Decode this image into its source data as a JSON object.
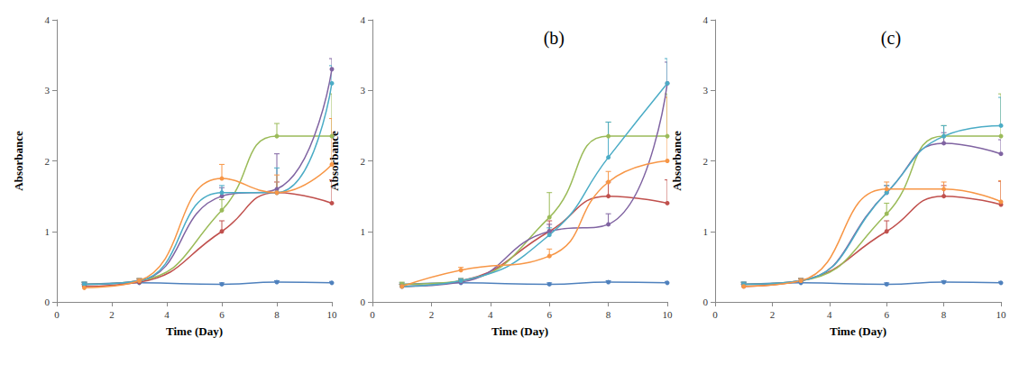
{
  "chart_data": [
    {
      "type": "line",
      "x_label": "Time (Day)",
      "y_label": "Absorbance",
      "x": [
        1,
        3,
        6,
        8,
        10
      ],
      "xlim": [
        0,
        10
      ],
      "xticks": [
        0,
        2,
        4,
        6,
        8,
        10
      ],
      "ylim": [
        0,
        4
      ],
      "yticks": [
        0,
        1,
        2,
        3,
        4
      ],
      "grid": false,
      "marker": "circle",
      "line_style": "solid",
      "series": [
        {
          "color": "#4f81bd",
          "values": [
            0.25,
            0.27,
            0.25,
            0.28,
            0.27
          ],
          "errors": [
            0.02,
            0.02,
            0.02,
            0.02,
            0.02
          ]
        },
        {
          "color": "#c0504d",
          "values": [
            0.22,
            0.28,
            1.0,
            1.55,
            1.4
          ],
          "errors": [
            0.03,
            0.03,
            0.15,
            0.15,
            0.33
          ]
        },
        {
          "color": "#9bbb59",
          "values": [
            0.25,
            0.3,
            1.3,
            2.35,
            2.35
          ],
          "errors": [
            0.03,
            0.03,
            0.15,
            0.18,
            0.6
          ]
        },
        {
          "color": "#8064a2",
          "values": [
            0.25,
            0.3,
            1.5,
            1.6,
            3.3
          ],
          "errors": [
            0.03,
            0.03,
            0.12,
            0.5,
            0.15
          ]
        },
        {
          "color": "#4bacc6",
          "values": [
            0.25,
            0.3,
            1.55,
            1.55,
            3.1
          ],
          "errors": [
            0.03,
            0.03,
            0.1,
            0.35,
            0.25
          ]
        },
        {
          "color": "#f79646",
          "values": [
            0.2,
            0.3,
            1.75,
            1.55,
            1.95
          ],
          "errors": [
            0.03,
            0.03,
            0.2,
            0.25,
            0.65
          ]
        }
      ]
    },
    {
      "type": "line",
      "x_label": "Time (Day)",
      "y_label": "Absorbance",
      "annotation": "(b)",
      "x": [
        1,
        3,
        6,
        8,
        10
      ],
      "xlim": [
        0,
        10
      ],
      "xticks": [
        0,
        2,
        4,
        6,
        8,
        10
      ],
      "ylim": [
        0,
        4
      ],
      "yticks": [
        0,
        1,
        2,
        3,
        4
      ],
      "grid": false,
      "marker": "circle",
      "line_style": "solid",
      "series": [
        {
          "color": "#4f81bd",
          "values": [
            0.25,
            0.27,
            0.25,
            0.28,
            0.27
          ],
          "errors": [
            0.02,
            0.02,
            0.02,
            0.02,
            0.02
          ]
        },
        {
          "color": "#c0504d",
          "values": [
            0.22,
            0.3,
            1.0,
            1.5,
            1.4
          ],
          "errors": [
            0.03,
            0.03,
            0.15,
            0.2,
            0.33
          ]
        },
        {
          "color": "#9bbb59",
          "values": [
            0.25,
            0.3,
            1.2,
            2.35,
            2.35
          ],
          "errors": [
            0.03,
            0.03,
            0.35,
            0.2,
            0.6
          ]
        },
        {
          "color": "#8064a2",
          "values": [
            0.22,
            0.28,
            1.0,
            1.1,
            3.1
          ],
          "errors": [
            0.03,
            0.03,
            0.1,
            0.15,
            0.3
          ]
        },
        {
          "color": "#4bacc6",
          "values": [
            0.22,
            0.3,
            0.95,
            2.05,
            3.1
          ],
          "errors": [
            0.03,
            0.03,
            0.1,
            0.5,
            0.35
          ]
        },
        {
          "color": "#f79646",
          "values": [
            0.22,
            0.45,
            0.65,
            1.7,
            2.0
          ],
          "errors": [
            0.03,
            0.04,
            0.1,
            0.15,
            0.9
          ]
        }
      ]
    },
    {
      "type": "line",
      "x_label": "Time (Day)",
      "y_label": "Absorbance",
      "annotation": "(c)",
      "x": [
        1,
        3,
        6,
        8,
        10
      ],
      "xlim": [
        0,
        10
      ],
      "xticks": [
        0,
        2,
        4,
        6,
        8,
        10
      ],
      "ylim": [
        0,
        4
      ],
      "yticks": [
        0,
        1,
        2,
        3,
        4
      ],
      "grid": false,
      "marker": "circle",
      "line_style": "solid",
      "series": [
        {
          "color": "#4f81bd",
          "values": [
            0.25,
            0.27,
            0.25,
            0.28,
            0.27
          ],
          "errors": [
            0.02,
            0.02,
            0.02,
            0.02,
            0.02
          ]
        },
        {
          "color": "#c0504d",
          "values": [
            0.22,
            0.3,
            1.0,
            1.5,
            1.38
          ],
          "errors": [
            0.03,
            0.03,
            0.15,
            0.15,
            0.33
          ]
        },
        {
          "color": "#9bbb59",
          "values": [
            0.25,
            0.3,
            1.25,
            2.35,
            2.35
          ],
          "errors": [
            0.03,
            0.03,
            0.15,
            0.15,
            0.6
          ]
        },
        {
          "color": "#8064a2",
          "values": [
            0.25,
            0.3,
            1.55,
            2.25,
            2.1
          ],
          "errors": [
            0.03,
            0.03,
            0.1,
            0.15,
            0.2
          ]
        },
        {
          "color": "#4bacc6",
          "values": [
            0.25,
            0.3,
            1.55,
            2.35,
            2.5
          ],
          "errors": [
            0.03,
            0.03,
            0.1,
            0.15,
            0.4
          ]
        },
        {
          "color": "#f79646",
          "values": [
            0.22,
            0.3,
            1.6,
            1.6,
            1.42
          ],
          "errors": [
            0.03,
            0.03,
            0.1,
            0.1,
            0.3
          ]
        }
      ]
    }
  ]
}
